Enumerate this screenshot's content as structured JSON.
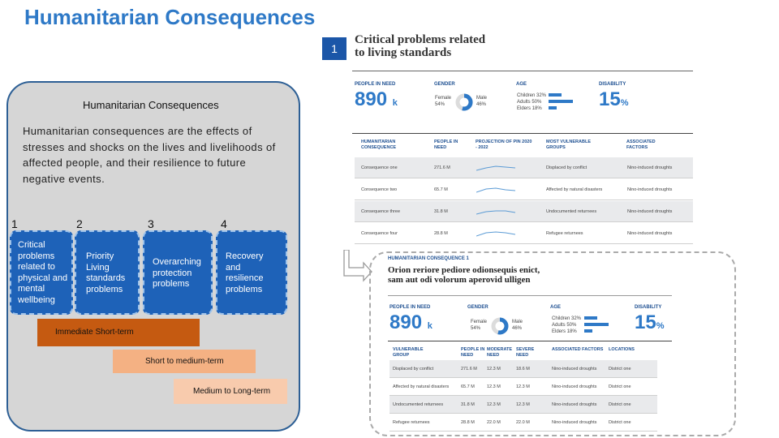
{
  "title": "Humanitarian Consequences",
  "panel": {
    "heading": "Humanitarian Consequences",
    "description": "Humanitarian consequences are the effects of stresses and shocks on the lives and livelihoods of affected people, and their resilience to future negative events.",
    "numbers": [
      "1",
      "2",
      "3",
      "4"
    ],
    "categories": [
      {
        "label": "Critical problems related to physical and mental wellbeing"
      },
      {
        "label": "Priority Living standards problems"
      },
      {
        "label": "Overarching protection problems"
      },
      {
        "label": "Recovery and resilience problems"
      }
    ],
    "timeframes": [
      "Immediate Short-term",
      "Short to medium-term",
      "Medium to Long-term"
    ]
  },
  "callout_number": "1",
  "figure1": {
    "title_line1": "Critical problems related",
    "title_line2": "to living standards",
    "people_in_need_label": "PEOPLE IN NEED",
    "people_in_need_value": "890",
    "people_in_need_unit": "k",
    "gender_label": "GENDER",
    "female": "Female 54%",
    "male": "Male 46%",
    "age_label": "AGE",
    "age_rows": [
      "Children 32%",
      "Adults 50%",
      "Elders 18%"
    ],
    "disability_label": "DISABILITY",
    "disability_value": "15",
    "disability_unit": "%",
    "table_headers": [
      "HUMANITARIAN CONSEQUENCE",
      "PEOPLE IN NEED",
      "PROJECTION OF PIN 2020 - 2022",
      "MOST VULNERABLE GROUPS",
      "ASSOCIATED FACTORS"
    ],
    "table_rows": [
      {
        "name": "Consequence one",
        "pin": "271.6 M",
        "group": "Displaced by conflict",
        "factor": "Nino-induced droughts"
      },
      {
        "name": "Consequence two",
        "pin": "65.7 M",
        "group": "Affected by natural disasters",
        "factor": "Nino-induced droughts"
      },
      {
        "name": "Consequence three",
        "pin": "31.8 M",
        "group": "Undocumented returnees",
        "factor": "Nino-induced droughts"
      },
      {
        "name": "Consequence four",
        "pin": "28.8 M",
        "group": "Refugee returnees",
        "factor": "Nino-induced droughts"
      }
    ]
  },
  "figure2": {
    "tag": "HUMANITARIAN CONSEQUENCE 1",
    "title_line1": "Orion reriore pediore odionsequis enict,",
    "title_line2": "sam aut odi volorum aperovid ulligen",
    "people_in_need_label": "PEOPLE IN NEED",
    "people_in_need_value": "890",
    "people_in_need_unit": "k",
    "gender_label": "GENDER",
    "female": "Female 54%",
    "male": "Male 46%",
    "age_label": "AGE",
    "age_rows": [
      "Children 32%",
      "Adults 50%",
      "Elders 18%"
    ],
    "disability_label": "DISABILITY",
    "disability_value": "15",
    "disability_unit": "%",
    "table_headers": [
      "VULNERABLE GROUP",
      "PEOPLE IN NEED",
      "MODERATE NEED",
      "SEVERE NEED",
      "ASSOCIATED FACTORS",
      "LOCATIONS"
    ],
    "table_rows": [
      {
        "group": "Displaced by conflict",
        "pin": "271.6 M",
        "mod": "12.3 M",
        "sev": "18.6 M",
        "factor": "Nino-induced droughts",
        "loc": "District one"
      },
      {
        "group": "Affected by natural disasters",
        "pin": "65.7 M",
        "mod": "12.3 M",
        "sev": "12.3 M",
        "factor": "Nino-induced droughts",
        "loc": "District one"
      },
      {
        "group": "Undocumented returnees",
        "pin": "31.8 M",
        "mod": "12.3 M",
        "sev": "12.3 M",
        "factor": "Nino-induced droughts",
        "loc": "District one"
      },
      {
        "group": "Refugee returnees",
        "pin": "28.8 M",
        "mod": "22.0 M",
        "sev": "22.0 M",
        "factor": "Nino-induced droughts",
        "loc": "District one"
      }
    ]
  },
  "colors": {
    "accent": "#2e79c7",
    "panel_bg": "#d6d6d6",
    "category_fill": "#1e62b8",
    "immediate": "#c55a11",
    "short": "#f4b183",
    "medium": "#f8cbad"
  }
}
